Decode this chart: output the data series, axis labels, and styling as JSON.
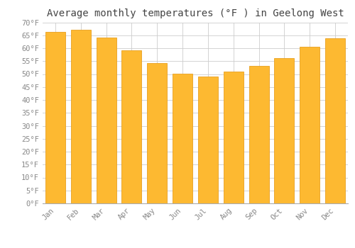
{
  "title": "Average monthly temperatures (°F ) in Geelong West",
  "months": [
    "Jan",
    "Feb",
    "Mar",
    "Apr",
    "May",
    "Jun",
    "Jul",
    "Aug",
    "Sep",
    "Oct",
    "Nov",
    "Dec"
  ],
  "values": [
    66.2,
    67.1,
    64.2,
    59.2,
    54.3,
    50.2,
    49.1,
    50.9,
    53.2,
    56.3,
    60.6,
    63.7
  ],
  "bar_color": "#FDB931",
  "bar_edge_color": "#E8A020",
  "background_color": "#FFFFFF",
  "grid_color": "#CCCCCC",
  "title_color": "#444444",
  "tick_label_color": "#888888",
  "ylim": [
    0,
    70
  ],
  "yticks": [
    0,
    5,
    10,
    15,
    20,
    25,
    30,
    35,
    40,
    45,
    50,
    55,
    60,
    65,
    70
  ],
  "title_fontsize": 10,
  "tick_fontsize": 7.5,
  "tick_font_family": "monospace"
}
